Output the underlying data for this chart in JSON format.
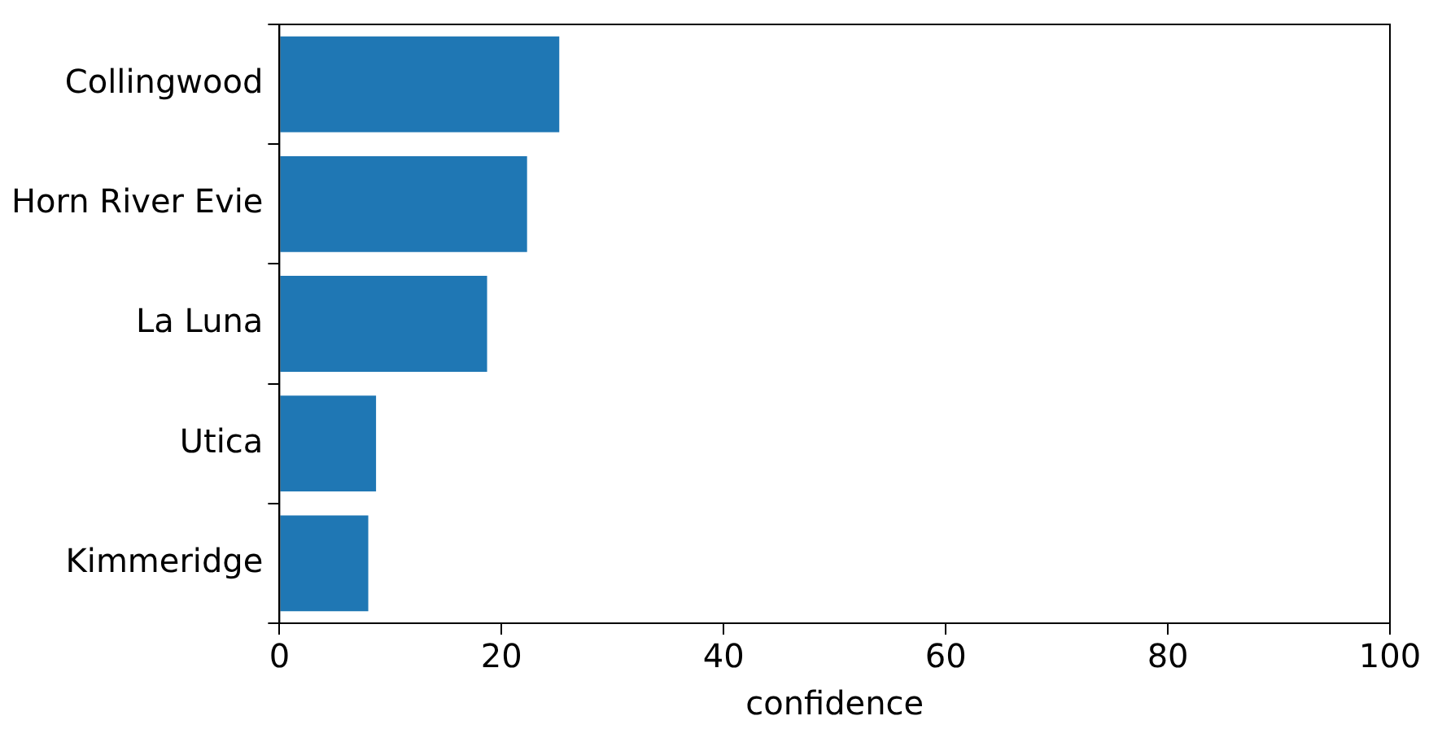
{
  "chart_data": {
    "type": "bar",
    "orientation": "horizontal",
    "xlabel": "confidence",
    "categories": [
      "Collingwood",
      "Horn River Evie",
      "La Luna",
      "Utica",
      "Kimmeridge"
    ],
    "values": [
      25.2,
      22.3,
      18.7,
      8.7,
      8.0
    ],
    "color": "#1f77b4",
    "xlim": [
      0,
      100
    ],
    "xticks": [
      0,
      20,
      40,
      60,
      80,
      100
    ],
    "grid": false,
    "legend": false
  }
}
